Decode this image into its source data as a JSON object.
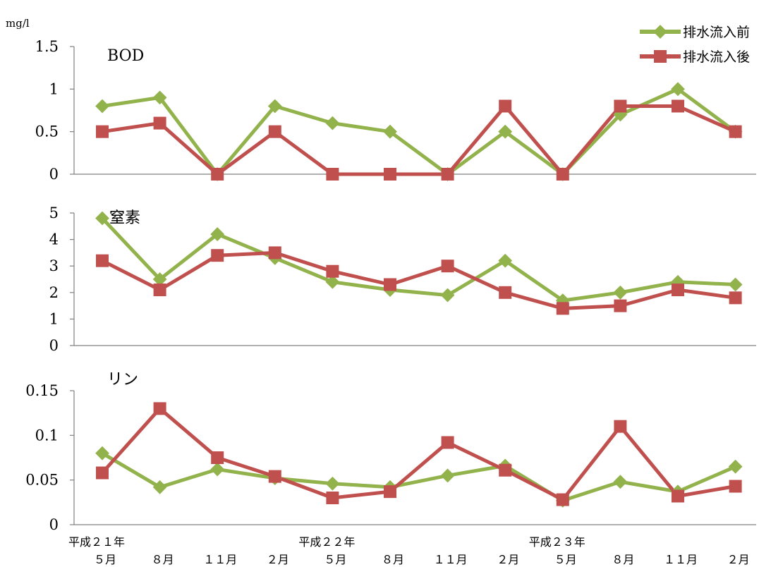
{
  "unit_label": "mg/l",
  "legend": {
    "before_label": "排水流入前",
    "after_label": "排水流入後"
  },
  "colors": {
    "before": "#92B24C",
    "after": "#C0504D"
  },
  "chart_data": [
    {
      "type": "line",
      "title": "BOD",
      "ylim": [
        0,
        1.5
      ],
      "yticks": [
        "0",
        "0.5",
        "1",
        "1.5"
      ],
      "series": [
        {
          "name": "排水流入前",
          "values": [
            0.8,
            0.9,
            0.0,
            0.8,
            0.6,
            0.5,
            0.0,
            0.5,
            0.0,
            0.7,
            1.0,
            0.5
          ]
        },
        {
          "name": "排水流入後",
          "values": [
            0.5,
            0.6,
            0.0,
            0.5,
            0.0,
            0.0,
            0.0,
            0.8,
            0.0,
            0.8,
            0.8,
            0.5
          ]
        }
      ]
    },
    {
      "type": "line",
      "title": "窒素",
      "ylim": [
        0,
        5
      ],
      "yticks": [
        "0",
        "1",
        "2",
        "3",
        "4",
        "5"
      ],
      "series": [
        {
          "name": "排水流入前",
          "values": [
            4.8,
            2.5,
            4.2,
            3.3,
            2.4,
            2.1,
            1.9,
            3.2,
            1.7,
            2.0,
            2.4,
            2.3
          ]
        },
        {
          "name": "排水流入後",
          "values": [
            3.2,
            2.1,
            3.4,
            3.5,
            2.8,
            2.3,
            3.0,
            2.0,
            1.4,
            1.5,
            2.1,
            1.8
          ]
        }
      ]
    },
    {
      "type": "line",
      "title": "リン",
      "ylim": [
        0,
        0.15
      ],
      "yticks": [
        "0",
        "0.05",
        "0.1",
        "0.15"
      ],
      "series": [
        {
          "name": "排水流入前",
          "values": [
            0.08,
            0.042,
            0.062,
            0.052,
            0.046,
            0.042,
            0.055,
            0.066,
            0.027,
            0.048,
            0.037,
            0.065
          ]
        },
        {
          "name": "排水流入後",
          "values": [
            0.058,
            0.13,
            0.075,
            0.054,
            0.03,
            0.037,
            0.092,
            0.061,
            0.028,
            0.11,
            0.032,
            0.043
          ]
        }
      ]
    }
  ],
  "x_axis": {
    "categories": [
      "５月",
      "８月",
      "１１月",
      "２月",
      "５月",
      "８月",
      "１１月",
      "２月",
      "５月",
      "８月",
      "１１月",
      "２月"
    ],
    "year_labels": [
      {
        "index": 0,
        "label": "平成２１年"
      },
      {
        "index": 4,
        "label": "平成２２年"
      },
      {
        "index": 8,
        "label": "平成２３年"
      }
    ]
  }
}
